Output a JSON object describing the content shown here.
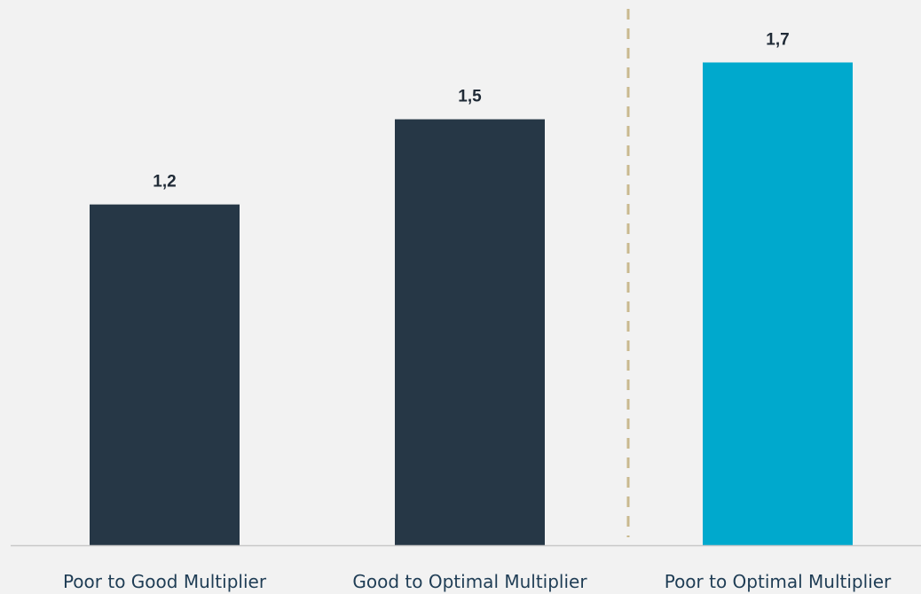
{
  "chart_data": {
    "type": "bar",
    "categories": [
      "Poor to Good Multiplier",
      "Good to Optimal Multiplier",
      "Poor to Optimal Multiplier"
    ],
    "values": [
      1.2,
      1.5,
      1.7
    ],
    "value_labels": [
      "1,2",
      "1,5",
      "1,7"
    ],
    "bar_colors": [
      "#263746",
      "#263746",
      "#00a9cd"
    ],
    "ylim": [
      0,
      1.92
    ],
    "grid": false,
    "separator": {
      "after_category_index": 1,
      "style": "dashed",
      "color": "#c9b98f"
    },
    "title": "",
    "xlabel": "",
    "ylabel": ""
  },
  "colors": {
    "background": "#f2f2f2",
    "axis": "#c8c8c8",
    "dark_bar": "#263746",
    "highlight_bar": "#00a9cd"
  }
}
